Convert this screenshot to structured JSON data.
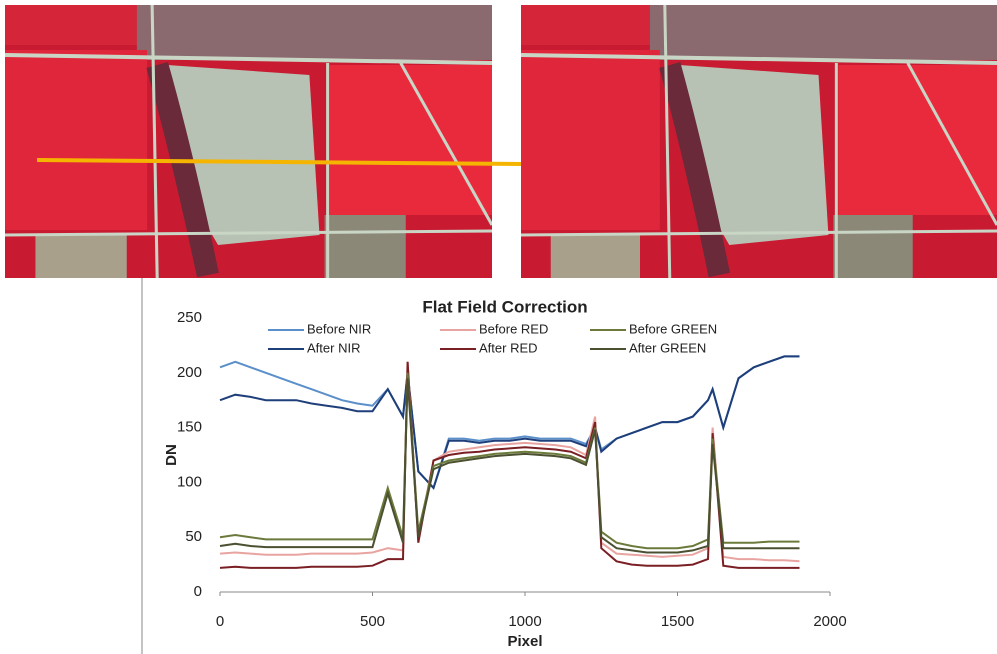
{
  "chart_data": {
    "type": "line",
    "title": "Flat Field Correction",
    "xlabel": "Pixel",
    "ylabel": "DN",
    "x": [
      0,
      50,
      100,
      150,
      200,
      250,
      300,
      350,
      400,
      450,
      500,
      550,
      600,
      615,
      650,
      700,
      750,
      800,
      850,
      900,
      950,
      1000,
      1050,
      1100,
      1150,
      1200,
      1230,
      1250,
      1300,
      1350,
      1400,
      1450,
      1500,
      1550,
      1600,
      1615,
      1650,
      1700,
      1750,
      1800,
      1850,
      1900
    ],
    "series": [
      {
        "name": "Before NIR",
        "color": "#5b8fc9",
        "values": [
          205,
          210,
          205,
          200,
          195,
          190,
          185,
          180,
          175,
          172,
          170,
          185,
          160,
          200,
          110,
          95,
          140,
          140,
          138,
          140,
          140,
          142,
          140,
          140,
          140,
          135,
          150,
          130,
          140,
          145,
          150,
          155,
          155,
          160,
          175,
          185,
          150,
          195,
          205,
          210,
          215,
          215
        ]
      },
      {
        "name": "After NIR",
        "color": "#1f3f7a",
        "values": [
          175,
          180,
          178,
          175,
          175,
          175,
          172,
          170,
          168,
          165,
          165,
          185,
          160,
          200,
          110,
          95,
          138,
          138,
          136,
          138,
          138,
          140,
          138,
          138,
          138,
          133,
          150,
          128,
          140,
          145,
          150,
          155,
          155,
          160,
          175,
          185,
          150,
          195,
          205,
          210,
          215,
          215
        ]
      },
      {
        "name": "Before RED",
        "color": "#e8a4a0",
        "values": [
          35,
          36,
          35,
          34,
          34,
          34,
          35,
          35,
          35,
          35,
          36,
          40,
          38,
          210,
          50,
          120,
          128,
          130,
          132,
          134,
          135,
          136,
          135,
          134,
          132,
          125,
          160,
          45,
          35,
          34,
          33,
          32,
          33,
          34,
          40,
          150,
          32,
          30,
          30,
          29,
          29,
          28
        ]
      },
      {
        "name": "After RED",
        "color": "#7a1f24",
        "values": [
          22,
          23,
          22,
          22,
          22,
          22,
          23,
          23,
          23,
          23,
          24,
          30,
          30,
          210,
          45,
          120,
          125,
          127,
          128,
          130,
          131,
          132,
          131,
          130,
          128,
          122,
          155,
          40,
          28,
          25,
          24,
          24,
          24,
          25,
          30,
          145,
          24,
          22,
          22,
          22,
          22,
          22
        ]
      },
      {
        "name": "Before GREEN",
        "color": "#6b7a3a",
        "values": [
          50,
          52,
          50,
          48,
          48,
          48,
          48,
          48,
          48,
          48,
          48,
          95,
          50,
          200,
          55,
          115,
          120,
          122,
          124,
          126,
          127,
          128,
          127,
          126,
          124,
          118,
          150,
          55,
          45,
          42,
          40,
          40,
          40,
          42,
          48,
          140,
          45,
          45,
          45,
          46,
          46,
          46
        ]
      },
      {
        "name": "After GREEN",
        "color": "#4a5030",
        "values": [
          42,
          44,
          42,
          41,
          41,
          41,
          41,
          41,
          41,
          41,
          41,
          90,
          45,
          195,
          50,
          112,
          118,
          120,
          122,
          124,
          125,
          126,
          125,
          124,
          122,
          116,
          148,
          50,
          40,
          38,
          36,
          36,
          36,
          38,
          42,
          135,
          40,
          40,
          40,
          40,
          40,
          40
        ]
      }
    ],
    "xlim": [
      0,
      2000
    ],
    "ylim": [
      0,
      250
    ],
    "xticks": [
      0,
      500,
      1000,
      1500,
      2000
    ],
    "yticks": [
      0,
      50,
      100,
      150,
      200,
      250
    ]
  }
}
